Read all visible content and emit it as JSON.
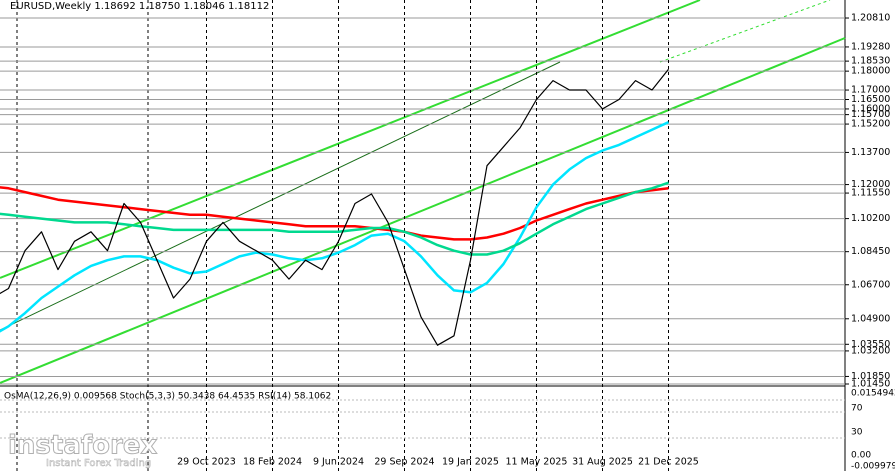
{
  "chart_data": {
    "type": "line",
    "title": "EURUSD,Weekly  1.18692 1.18750 1.18046 1.18112",
    "categories": [
      null,
      null,
      null,
      null,
      null,
      null,
      null,
      null,
      null,
      null,
      null,
      null,
      null,
      "29 Oct 2023",
      null,
      null,
      null,
      "18 Feb 2024",
      null,
      null,
      null,
      "9 Jun 2024",
      null,
      null,
      null,
      "29 Sep 2024",
      null,
      null,
      null,
      "19 Jan 2025",
      null,
      null,
      null,
      "11 May 2025",
      null,
      null,
      null,
      "31 Aug 2025",
      null,
      null,
      null,
      "21 Dec 2025"
    ],
    "series": [
      {
        "color": "#000000",
        "values": [
          1.06,
          1.065,
          1.085,
          1.095,
          1.075,
          1.09,
          1.095,
          1.085,
          1.11,
          1.1,
          1.08,
          1.06,
          1.07,
          1.09,
          1.1,
          1.09,
          1.085,
          1.08,
          1.07,
          1.08,
          1.075,
          1.09,
          1.11,
          1.115,
          1.1,
          1.075,
          1.05,
          1.035,
          1.04,
          1.08,
          1.13,
          1.14,
          1.15,
          1.165,
          1.175,
          1.17,
          1.17,
          1.16,
          1.165,
          1.175,
          1.17,
          1.181
        ]
      },
      {
        "color": "#ff0000",
        "values": [
          1.119,
          1.118,
          1.116,
          1.114,
          1.112,
          1.111,
          1.11,
          1.109,
          1.108,
          1.107,
          1.106,
          1.105,
          1.104,
          1.104,
          1.103,
          1.102,
          1.101,
          1.1,
          1.099,
          1.098,
          1.098,
          1.098,
          1.098,
          1.097,
          1.096,
          1.095,
          1.093,
          1.092,
          1.091,
          1.091,
          1.092,
          1.094,
          1.097,
          1.101,
          1.104,
          1.107,
          1.11,
          1.112,
          1.114,
          1.116,
          1.117,
          1.118
        ]
      },
      {
        "color": "#00e5ff",
        "values": [
          1.04,
          1.045,
          1.052,
          1.06,
          1.066,
          1.072,
          1.077,
          1.08,
          1.082,
          1.082,
          1.08,
          1.076,
          1.073,
          1.074,
          1.078,
          1.082,
          1.084,
          1.083,
          1.081,
          1.08,
          1.081,
          1.084,
          1.088,
          1.093,
          1.094,
          1.09,
          1.082,
          1.072,
          1.064,
          1.063,
          1.068,
          1.078,
          1.092,
          1.108,
          1.12,
          1.128,
          1.134,
          1.138,
          1.141,
          1.145,
          1.149,
          1.153
        ]
      },
      {
        "color": "#00d98f",
        "values": [
          1.105,
          1.104,
          1.103,
          1.102,
          1.101,
          1.1,
          1.1,
          1.1,
          1.099,
          1.098,
          1.097,
          1.096,
          1.096,
          1.096,
          1.096,
          1.096,
          1.096,
          1.096,
          1.095,
          1.095,
          1.095,
          1.095,
          1.096,
          1.097,
          1.097,
          1.095,
          1.092,
          1.088,
          1.085,
          1.083,
          1.083,
          1.085,
          1.089,
          1.094,
          1.099,
          1.103,
          1.107,
          1.11,
          1.113,
          1.116,
          1.118,
          1.121
        ]
      }
    ],
    "ylim": [
      1.0145,
      1.2134
    ],
    "yticks": [
      {
        "value": 1.2081,
        "label": "1.20810"
      },
      {
        "value": 1.1928,
        "label": "1.19280"
      },
      {
        "value": 1.1853,
        "label": "1.18530"
      },
      {
        "value": 1.18,
        "label": "1.18000"
      },
      {
        "value": 1.17,
        "label": "1.17000"
      },
      {
        "value": 1.165,
        "label": "1.16500"
      },
      {
        "value": 1.16,
        "label": "1.16000"
      },
      {
        "value": 1.157,
        "label": "1.15700"
      },
      {
        "value": 1.152,
        "label": "1.15200"
      },
      {
        "value": 1.137,
        "label": "1.13700"
      },
      {
        "value": 1.12,
        "label": "1.12000"
      },
      {
        "value": 1.1155,
        "label": "1.11550"
      },
      {
        "value": 1.102,
        "label": "1.10200"
      },
      {
        "value": 1.0845,
        "label": "1.08450"
      },
      {
        "value": 1.067,
        "label": "1.06700"
      },
      {
        "value": 1.049,
        "label": "1.04900"
      },
      {
        "value": 1.0355,
        "label": "1.03550"
      },
      {
        "value": 1.032,
        "label": "1.03200"
      },
      {
        "value": 1.0185,
        "label": "1.01850"
      },
      {
        "value": 1.0145,
        "label": "1.01450"
      }
    ],
    "grid": true,
    "indicator_text": "OsMA(12,26,9) 0.009568  Stoch(5,3,3) 50.3438 64.4535  RSI(14) 58.1062",
    "sub_axis_labels": [
      "0.0154942",
      "70",
      "30",
      "0.00",
      "-0.009979"
    ],
    "watermark": [
      "instaforex",
      "Instant Forex Trading"
    ]
  }
}
